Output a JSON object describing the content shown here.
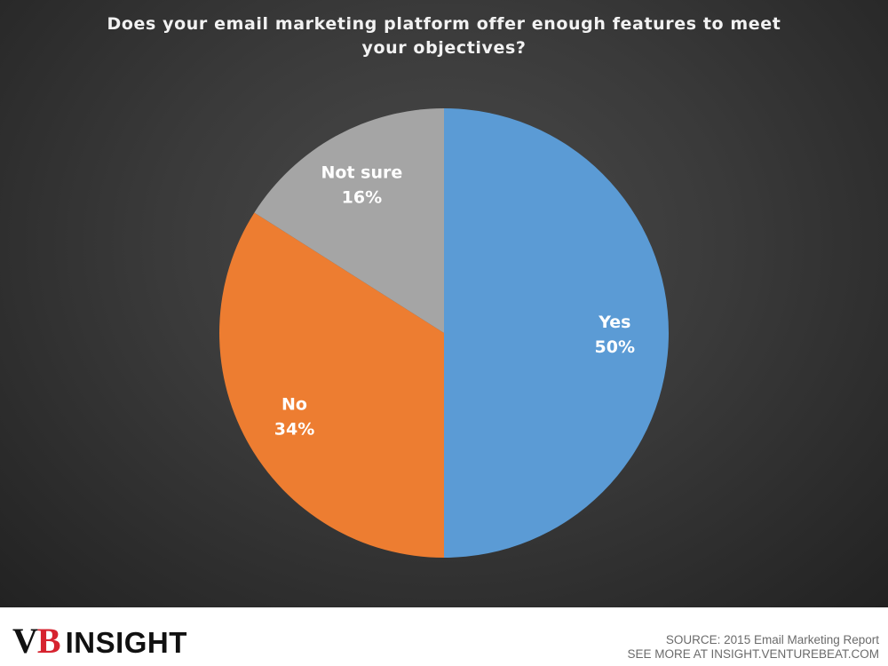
{
  "logo": {
    "vb_v": "V",
    "vb_b": "B",
    "insight": "INSIGHT",
    "brand_red": "#d6232f"
  },
  "source": {
    "line1": "SOURCE: 2015 Email Marketing Report",
    "line2": "SEE MORE AT INSIGHT.VENTUREBEAT.COM"
  },
  "chart_data": {
    "type": "pie",
    "title": "Does your email marketing platform offer enough features to meet your objectives?",
    "slices": [
      {
        "label": "Yes",
        "value": 50,
        "display": "50%",
        "color": "#5b9bd5"
      },
      {
        "label": "No",
        "value": 34,
        "display": "34%",
        "color": "#ed7d31"
      },
      {
        "label": "Not sure",
        "value": 16,
        "display": "16%",
        "color": "#a5a5a5"
      }
    ],
    "start": "12 o'clock",
    "direction": "clockwise",
    "legend": "none (labels on slices)"
  }
}
